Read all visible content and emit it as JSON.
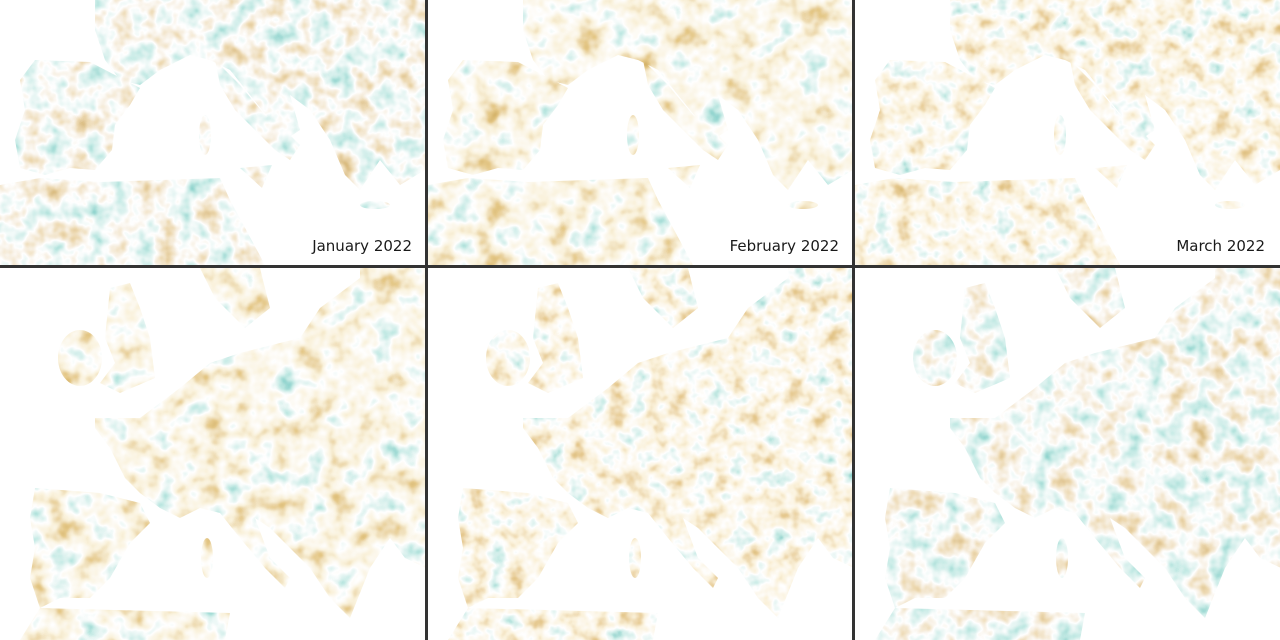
{
  "panels": [
    {
      "label": "January 2022"
    },
    {
      "label": "February 2022"
    },
    {
      "label": "March 2022"
    }
  ]
}
